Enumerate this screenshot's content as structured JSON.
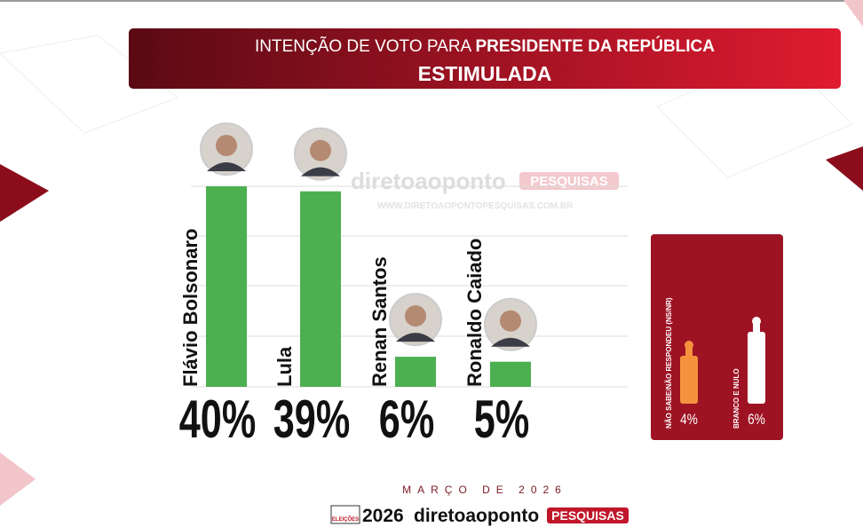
{
  "header": {
    "title": "INTENÇÃO DE VOTO PARA",
    "title_emphasis": "PRESIDENTE DA REPÚBLICA",
    "subtitle": "ESTIMULADA"
  },
  "watermark": {
    "brand": "diretoaoponto",
    "tag": "PESQUISAS",
    "url": "WWW.DIRETOAOPONTOPESQUISAS.COM.BR"
  },
  "chart_data": [
    {
      "type": "bar",
      "categories": [
        "Flávio Bolsonaro",
        "Lula",
        "Renan Santos",
        "Ronaldo Caiado"
      ],
      "values": [
        40,
        39,
        6,
        5
      ],
      "value_labels": [
        "40%",
        "39%",
        "6%",
        "5%"
      ],
      "color": "#4caf50"
    },
    {
      "type": "bottle",
      "categories": [
        "NÃO SABE/NÃO RESPONDEU  (NS/NR)",
        "BRANCO E NULO"
      ],
      "values": [
        4,
        6
      ],
      "value_labels": [
        "4%",
        "6%"
      ],
      "colors": [
        "#f5923e",
        "#ffffff"
      ]
    }
  ],
  "footer": {
    "date": "MARÇO DE 2026",
    "logo_badge": "ELEIÇÕES",
    "logo_year": "2026",
    "logo_brand": "diretoaoponto",
    "logo_tag": "PESQUISAS"
  }
}
